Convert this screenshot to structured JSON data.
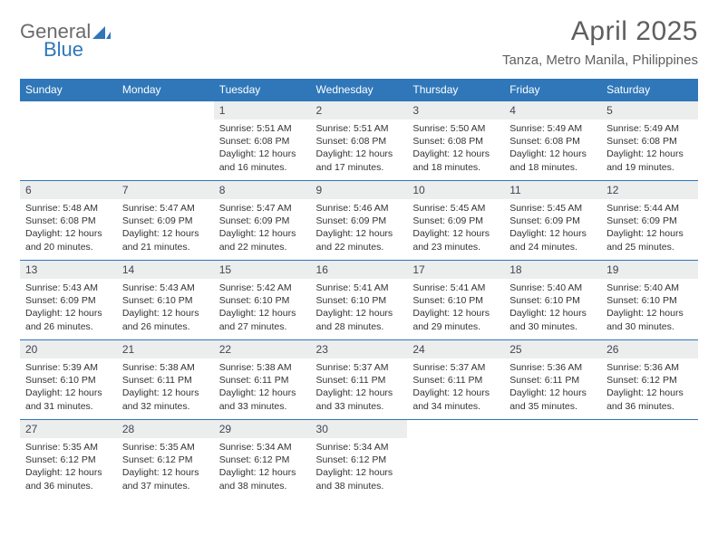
{
  "brand": {
    "word1": "General",
    "word2": "Blue"
  },
  "title": "April 2025",
  "location": "Tanza, Metro Manila, Philippines",
  "colors": {
    "accent": "#2f77b9",
    "header_text": "#ffffff",
    "daynum_bg": "#eceded",
    "text": "#333333"
  },
  "weekdays": [
    "Sunday",
    "Monday",
    "Tuesday",
    "Wednesday",
    "Thursday",
    "Friday",
    "Saturday"
  ],
  "weeks": [
    [
      {
        "n": "",
        "sr": "",
        "ss": "",
        "dl": ""
      },
      {
        "n": "",
        "sr": "",
        "ss": "",
        "dl": ""
      },
      {
        "n": "1",
        "sr": "Sunrise: 5:51 AM",
        "ss": "Sunset: 6:08 PM",
        "dl": "Daylight: 12 hours and 16 minutes."
      },
      {
        "n": "2",
        "sr": "Sunrise: 5:51 AM",
        "ss": "Sunset: 6:08 PM",
        "dl": "Daylight: 12 hours and 17 minutes."
      },
      {
        "n": "3",
        "sr": "Sunrise: 5:50 AM",
        "ss": "Sunset: 6:08 PM",
        "dl": "Daylight: 12 hours and 18 minutes."
      },
      {
        "n": "4",
        "sr": "Sunrise: 5:49 AM",
        "ss": "Sunset: 6:08 PM",
        "dl": "Daylight: 12 hours and 18 minutes."
      },
      {
        "n": "5",
        "sr": "Sunrise: 5:49 AM",
        "ss": "Sunset: 6:08 PM",
        "dl": "Daylight: 12 hours and 19 minutes."
      }
    ],
    [
      {
        "n": "6",
        "sr": "Sunrise: 5:48 AM",
        "ss": "Sunset: 6:08 PM",
        "dl": "Daylight: 12 hours and 20 minutes."
      },
      {
        "n": "7",
        "sr": "Sunrise: 5:47 AM",
        "ss": "Sunset: 6:09 PM",
        "dl": "Daylight: 12 hours and 21 minutes."
      },
      {
        "n": "8",
        "sr": "Sunrise: 5:47 AM",
        "ss": "Sunset: 6:09 PM",
        "dl": "Daylight: 12 hours and 22 minutes."
      },
      {
        "n": "9",
        "sr": "Sunrise: 5:46 AM",
        "ss": "Sunset: 6:09 PM",
        "dl": "Daylight: 12 hours and 22 minutes."
      },
      {
        "n": "10",
        "sr": "Sunrise: 5:45 AM",
        "ss": "Sunset: 6:09 PM",
        "dl": "Daylight: 12 hours and 23 minutes."
      },
      {
        "n": "11",
        "sr": "Sunrise: 5:45 AM",
        "ss": "Sunset: 6:09 PM",
        "dl": "Daylight: 12 hours and 24 minutes."
      },
      {
        "n": "12",
        "sr": "Sunrise: 5:44 AM",
        "ss": "Sunset: 6:09 PM",
        "dl": "Daylight: 12 hours and 25 minutes."
      }
    ],
    [
      {
        "n": "13",
        "sr": "Sunrise: 5:43 AM",
        "ss": "Sunset: 6:09 PM",
        "dl": "Daylight: 12 hours and 26 minutes."
      },
      {
        "n": "14",
        "sr": "Sunrise: 5:43 AM",
        "ss": "Sunset: 6:10 PM",
        "dl": "Daylight: 12 hours and 26 minutes."
      },
      {
        "n": "15",
        "sr": "Sunrise: 5:42 AM",
        "ss": "Sunset: 6:10 PM",
        "dl": "Daylight: 12 hours and 27 minutes."
      },
      {
        "n": "16",
        "sr": "Sunrise: 5:41 AM",
        "ss": "Sunset: 6:10 PM",
        "dl": "Daylight: 12 hours and 28 minutes."
      },
      {
        "n": "17",
        "sr": "Sunrise: 5:41 AM",
        "ss": "Sunset: 6:10 PM",
        "dl": "Daylight: 12 hours and 29 minutes."
      },
      {
        "n": "18",
        "sr": "Sunrise: 5:40 AM",
        "ss": "Sunset: 6:10 PM",
        "dl": "Daylight: 12 hours and 30 minutes."
      },
      {
        "n": "19",
        "sr": "Sunrise: 5:40 AM",
        "ss": "Sunset: 6:10 PM",
        "dl": "Daylight: 12 hours and 30 minutes."
      }
    ],
    [
      {
        "n": "20",
        "sr": "Sunrise: 5:39 AM",
        "ss": "Sunset: 6:10 PM",
        "dl": "Daylight: 12 hours and 31 minutes."
      },
      {
        "n": "21",
        "sr": "Sunrise: 5:38 AM",
        "ss": "Sunset: 6:11 PM",
        "dl": "Daylight: 12 hours and 32 minutes."
      },
      {
        "n": "22",
        "sr": "Sunrise: 5:38 AM",
        "ss": "Sunset: 6:11 PM",
        "dl": "Daylight: 12 hours and 33 minutes."
      },
      {
        "n": "23",
        "sr": "Sunrise: 5:37 AM",
        "ss": "Sunset: 6:11 PM",
        "dl": "Daylight: 12 hours and 33 minutes."
      },
      {
        "n": "24",
        "sr": "Sunrise: 5:37 AM",
        "ss": "Sunset: 6:11 PM",
        "dl": "Daylight: 12 hours and 34 minutes."
      },
      {
        "n": "25",
        "sr": "Sunrise: 5:36 AM",
        "ss": "Sunset: 6:11 PM",
        "dl": "Daylight: 12 hours and 35 minutes."
      },
      {
        "n": "26",
        "sr": "Sunrise: 5:36 AM",
        "ss": "Sunset: 6:12 PM",
        "dl": "Daylight: 12 hours and 36 minutes."
      }
    ],
    [
      {
        "n": "27",
        "sr": "Sunrise: 5:35 AM",
        "ss": "Sunset: 6:12 PM",
        "dl": "Daylight: 12 hours and 36 minutes."
      },
      {
        "n": "28",
        "sr": "Sunrise: 5:35 AM",
        "ss": "Sunset: 6:12 PM",
        "dl": "Daylight: 12 hours and 37 minutes."
      },
      {
        "n": "29",
        "sr": "Sunrise: 5:34 AM",
        "ss": "Sunset: 6:12 PM",
        "dl": "Daylight: 12 hours and 38 minutes."
      },
      {
        "n": "30",
        "sr": "Sunrise: 5:34 AM",
        "ss": "Sunset: 6:12 PM",
        "dl": "Daylight: 12 hours and 38 minutes."
      },
      {
        "n": "",
        "sr": "",
        "ss": "",
        "dl": ""
      },
      {
        "n": "",
        "sr": "",
        "ss": "",
        "dl": ""
      },
      {
        "n": "",
        "sr": "",
        "ss": "",
        "dl": ""
      }
    ]
  ]
}
